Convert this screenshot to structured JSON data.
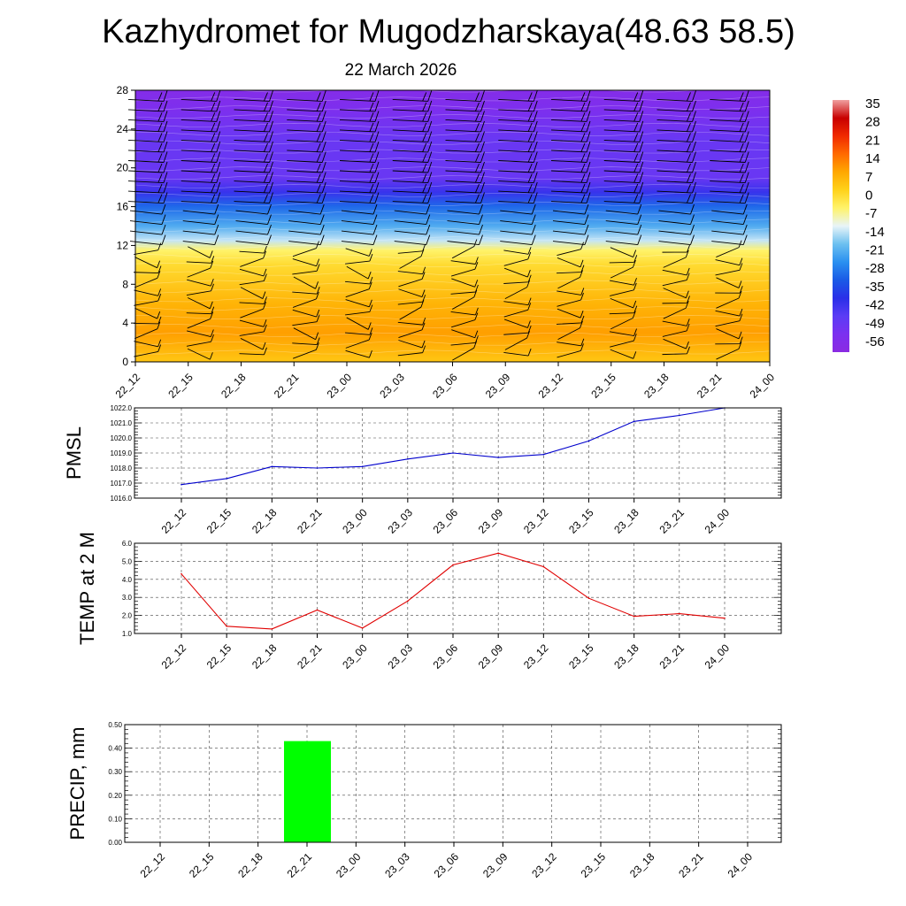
{
  "page": {
    "title": "Kazhydromet for Mugodzharskaya(48.63 58.5)",
    "subtitle": "22 March 2026"
  },
  "colors": {
    "pmsl_line": "#0000cc",
    "temp_line": "#e00000",
    "precip_bar": "#00ff00",
    "grid": "#444444",
    "barb": "#000000"
  },
  "chart_data": [
    {
      "id": "cross-section",
      "type": "heatmap",
      "description_units": "temperature contour with wind barbs",
      "x": [
        "22_12",
        "22_15",
        "22_18",
        "22_21",
        "23_00",
        "23_03",
        "23_06",
        "23_09",
        "23_12",
        "23_15",
        "23_18",
        "23_21",
        "24_00"
      ],
      "ylim": [
        0,
        28
      ],
      "yticks": [
        0,
        4,
        8,
        12,
        16,
        20,
        24,
        28
      ],
      "colorbar": {
        "labels": [
          "35",
          "28",
          "21",
          "14",
          "7",
          "0",
          "-7",
          "-14",
          "-21",
          "-28",
          "-35",
          "-42",
          "-49",
          "-56"
        ],
        "stops": [
          {
            "v": -63,
            "c": "#8a2be2"
          },
          {
            "v": -56,
            "c": "#7b30f0"
          },
          {
            "v": -49,
            "c": "#5b3cf5"
          },
          {
            "v": -42,
            "c": "#2a2fe8"
          },
          {
            "v": -35,
            "c": "#1a5ae6"
          },
          {
            "v": -28,
            "c": "#2a90f0"
          },
          {
            "v": -21,
            "c": "#6cc0f0"
          },
          {
            "v": -14,
            "c": "#e8f4f8"
          },
          {
            "v": -7,
            "c": "#fff36a"
          },
          {
            "v": 0,
            "c": "#ffd21a"
          },
          {
            "v": 7,
            "c": "#ffa800"
          },
          {
            "v": 14,
            "c": "#ff6a00"
          },
          {
            "v": 21,
            "c": "#f02a00"
          },
          {
            "v": 28,
            "c": "#c80000"
          },
          {
            "v": 35,
            "c": "#f0a0a0"
          }
        ]
      },
      "vertical_profile": [
        {
          "h": 0,
          "t": 2
        },
        {
          "h": 3,
          "t": 8
        },
        {
          "h": 6,
          "t": 5
        },
        {
          "h": 10,
          "t": -2
        },
        {
          "h": 11.5,
          "t": -7
        },
        {
          "h": 12.5,
          "t": -16
        },
        {
          "h": 14,
          "t": -24
        },
        {
          "h": 16,
          "t": -33
        },
        {
          "h": 17.5,
          "t": -44
        },
        {
          "h": 19,
          "t": -52
        },
        {
          "h": 23,
          "t": -52
        },
        {
          "h": 26,
          "t": -57
        },
        {
          "h": 28,
          "t": -60
        }
      ]
    },
    {
      "id": "pmsl",
      "type": "line",
      "ylabel": "PMSL",
      "x": [
        "22_12",
        "22_15",
        "22_18",
        "22_21",
        "23_00",
        "23_03",
        "23_06",
        "23_09",
        "23_12",
        "23_15",
        "23_18",
        "23_21",
        "24_00"
      ],
      "values": [
        1016.9,
        1017.3,
        1018.1,
        1018.0,
        1018.1,
        1018.6,
        1019.0,
        1018.7,
        1018.9,
        1019.8,
        1021.1,
        1021.5,
        1022.0
      ],
      "ylim": [
        1016.0,
        1022.0
      ],
      "yticks": [
        "1016.0",
        "1017.0",
        "1018.0",
        "1019.0",
        "1020.0",
        "1021.0",
        "1022.0"
      ]
    },
    {
      "id": "temp",
      "type": "line",
      "ylabel": "TEMP at 2 M",
      "x": [
        "22_12",
        "22_15",
        "22_18",
        "22_21",
        "23_00",
        "23_03",
        "23_06",
        "23_09",
        "23_12",
        "23_15",
        "23_18",
        "23_21",
        "24_00"
      ],
      "values": [
        4.3,
        1.4,
        1.25,
        2.3,
        1.3,
        2.8,
        4.8,
        5.45,
        4.7,
        2.95,
        1.95,
        2.1,
        1.85
      ],
      "ylim": [
        1.0,
        6.0
      ],
      "yticks": [
        "1.0",
        "2.0",
        "3.0",
        "4.0",
        "5.0",
        "6.0"
      ]
    },
    {
      "id": "precip",
      "type": "bar",
      "ylabel": "PRECIP, mm",
      "x": [
        "22_12",
        "22_15",
        "22_18",
        "22_21",
        "23_00",
        "23_03",
        "23_06",
        "23_09",
        "23_12",
        "23_15",
        "23_18",
        "23_21",
        "24_00"
      ],
      "values": [
        0,
        0,
        0,
        0.43,
        0,
        0,
        0,
        0,
        0,
        0,
        0,
        0,
        0
      ],
      "ylim": [
        0,
        0.5
      ],
      "yticks": [
        "0.00",
        "0.10",
        "0.20",
        "0.30",
        "0.40",
        "0.50"
      ]
    }
  ]
}
